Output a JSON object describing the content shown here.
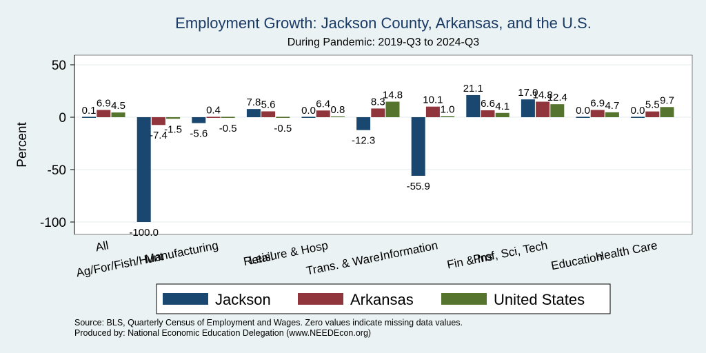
{
  "chart_data": {
    "type": "bar",
    "title": "Employment Growth: Jackson County, Arkansas, and the U.S.",
    "subtitle": "During Pandemic: 2019-Q3 to 2024-Q3",
    "ylabel": "Percent",
    "xlabel": "",
    "ylim": [
      -110,
      60
    ],
    "yticks": [
      50,
      0,
      -50,
      -100
    ],
    "grid": true,
    "categories": [
      "All",
      "Ag/For/Fish/Hunt",
      "Manufacturing",
      "Retail",
      "Leisure & Hosp",
      "Trans. & Ware.",
      "Information",
      "Fin & Ins",
      "Prof, Sci, Tech",
      "Education",
      "Health Care"
    ],
    "series": [
      {
        "name": "Jackson",
        "color": "#1a476f",
        "values": [
          0.1,
          -100.0,
          -5.6,
          7.8,
          0.0,
          -12.3,
          -55.9,
          21.1,
          17.0,
          0.0,
          0.0
        ]
      },
      {
        "name": "Arkansas",
        "color": "#90353b",
        "values": [
          6.9,
          -7.4,
          0.4,
          5.6,
          6.4,
          8.3,
          10.1,
          6.6,
          14.8,
          6.9,
          5.5
        ]
      },
      {
        "name": "United States",
        "color": "#55752f",
        "values": [
          4.5,
          -1.5,
          -0.5,
          -0.5,
          0.8,
          14.8,
          1.0,
          4.1,
          12.4,
          4.7,
          9.7
        ]
      }
    ],
    "legend_position": "bottom",
    "notes": [
      "Source: BLS, Quarterly Census of Employment and Wages. Zero values indicate missing data values.",
      "Produced by: National Economic Education Delegation (www.NEEDEcon.org)"
    ]
  }
}
